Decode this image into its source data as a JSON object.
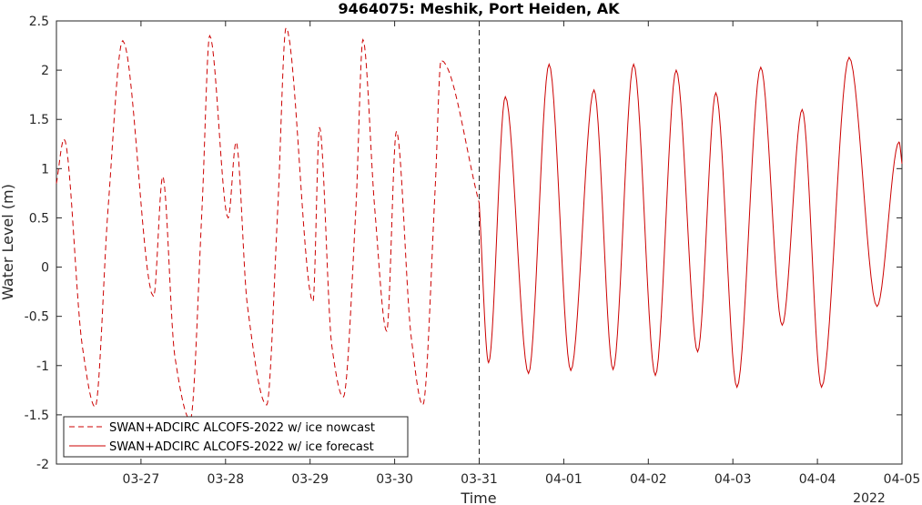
{
  "chart_data": {
    "type": "line",
    "title": "9464075: Meshik, Port Heiden, AK",
    "xlabel": "Time",
    "ylabel": "Water Level (m)",
    "year_label": "2022",
    "x_range": [
      "2022-03-26T00:00",
      "2022-04-05T00:00"
    ],
    "x_ticks": [
      "03-27",
      "03-28",
      "03-29",
      "03-30",
      "03-31",
      "04-01",
      "04-02",
      "04-03",
      "04-04",
      "04-05"
    ],
    "ylim": [
      -2,
      2.5
    ],
    "y_ticks": [
      "-2",
      "-1.5",
      "-1",
      "-0.5",
      "0",
      "0.5",
      "1",
      "1.5",
      "2",
      "2.5"
    ],
    "nowcast_forecast_boundary": "2022-03-31T00:00",
    "grid": false,
    "legend_position": "bottom-left",
    "colors": {
      "series": "#cc0000",
      "axes": "#262626"
    },
    "series": [
      {
        "name": "SWAN+ADCIRC ALCOFS-2022 w/ ice nowcast",
        "style": "dashed",
        "points": [
          [
            "03-26 00:00",
            0.85
          ],
          [
            "03-26 02:10",
            1.3
          ],
          [
            "03-26 07:20",
            -0.8
          ],
          [
            "03-26 11:00",
            -1.42
          ],
          [
            "03-26 14:40",
            0.6
          ],
          [
            "03-26 18:50",
            2.3
          ],
          [
            "03-27 03:35",
            -0.3
          ],
          [
            "03-27 06:10",
            0.92
          ],
          [
            "03-27 09:35",
            -0.9
          ],
          [
            "03-27 14:00",
            -1.55
          ],
          [
            "03-27 17:20",
            0.6
          ],
          [
            "03-27 19:30",
            2.35
          ],
          [
            "03-28 00:45",
            0.5
          ],
          [
            "03-28 03:00",
            1.27
          ],
          [
            "03-28 06:10",
            -0.38
          ],
          [
            "03-28 11:40",
            -1.4
          ],
          [
            "03-28 14:50",
            0.6
          ],
          [
            "03-28 17:10",
            2.43
          ],
          [
            "03-29 00:50",
            -0.35
          ],
          [
            "03-29 02:40",
            1.42
          ],
          [
            "03-29 06:10",
            -0.8
          ],
          [
            "03-29 09:25",
            -1.32
          ],
          [
            "03-29 13:00",
            0.6
          ],
          [
            "03-29 15:00",
            2.31
          ],
          [
            "03-29 18:20",
            0.6
          ],
          [
            "03-29 21:45",
            -0.65
          ],
          [
            "03-30 00:30",
            1.38
          ],
          [
            "03-30 04:40",
            -0.7
          ],
          [
            "03-30 08:00",
            -1.4
          ],
          [
            "03-30 11:30",
            0.8
          ],
          [
            "03-30 13:10",
            2.1
          ],
          [
            "03-31 00:00",
            0.65
          ]
        ]
      },
      {
        "name": "SWAN+ADCIRC ALCOFS-2022 w/ ice forecast",
        "style": "solid",
        "points": [
          [
            "03-31 00:00",
            0.65
          ],
          [
            "03-31 02:40",
            -0.97
          ],
          [
            "03-31 07:25",
            1.73
          ],
          [
            "03-31 14:00",
            -1.08
          ],
          [
            "03-31 19:50",
            2.06
          ],
          [
            "04-01 02:00",
            -1.05
          ],
          [
            "04-01 08:35",
            1.8
          ],
          [
            "04-01 14:00",
            -1.04
          ],
          [
            "04-01 19:50",
            2.06
          ],
          [
            "04-02 02:00",
            -1.1
          ],
          [
            "04-02 07:55",
            2.0
          ],
          [
            "04-02 14:00",
            -0.86
          ],
          [
            "04-02 19:10",
            1.77
          ],
          [
            "04-03 01:10",
            -1.22
          ],
          [
            "04-03 07:55",
            2.03
          ],
          [
            "04-03 14:00",
            -0.59
          ],
          [
            "04-03 19:40",
            1.6
          ],
          [
            "04-04 01:10",
            -1.22
          ],
          [
            "04-04 09:00",
            2.13
          ],
          [
            "04-04 16:55",
            -0.4
          ],
          [
            "04-04 23:10",
            1.27
          ],
          [
            "04-05 00:00",
            1.05
          ]
        ]
      }
    ]
  }
}
